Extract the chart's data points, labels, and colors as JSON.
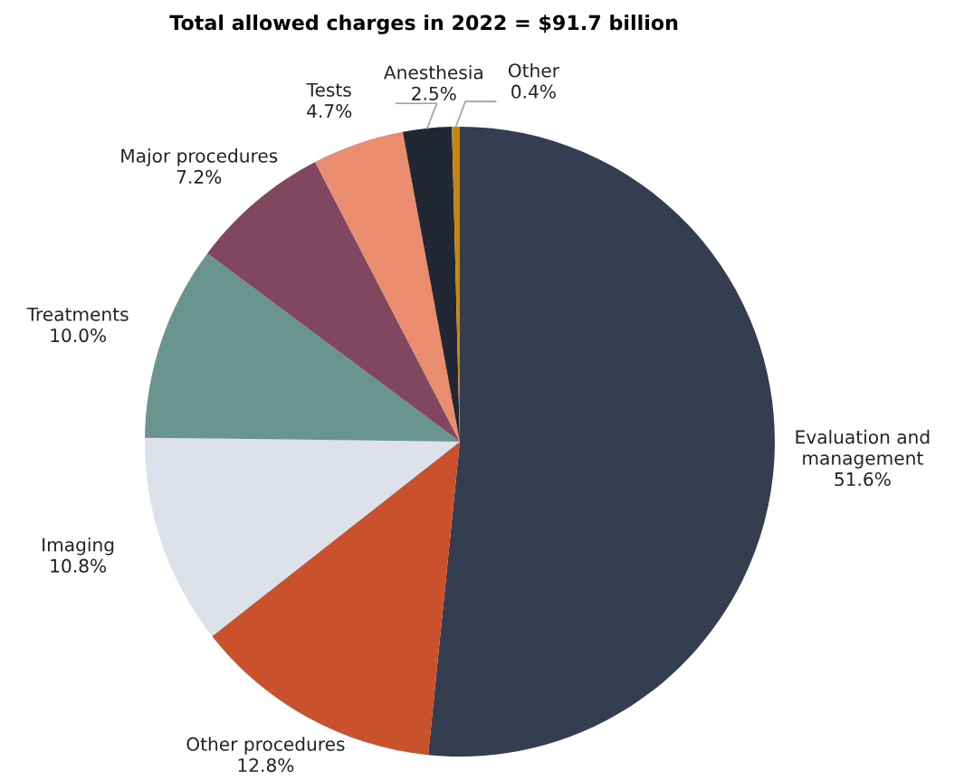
{
  "chart_data": {
    "type": "pie",
    "title": "Total allowed charges in 2022 = $91.7 billion",
    "categories": [
      "Evaluation and management",
      "Other procedures",
      "Imaging",
      "Treatments",
      "Major procedures",
      "Tests",
      "Anesthesia",
      "Other"
    ],
    "values": [
      51.6,
      12.8,
      10.8,
      10.0,
      7.2,
      4.7,
      2.5,
      0.4
    ],
    "value_labels": [
      "51.6%",
      "12.8%",
      "10.8%",
      "10.0%",
      "7.2%",
      "4.7%",
      "2.5%",
      "0.4%"
    ],
    "colors": [
      "#343e50",
      "#c9522c",
      "#dde1ea",
      "#6a948e",
      "#80475f",
      "#ea8c6e",
      "#222833",
      "#c8860d"
    ],
    "legend": false
  }
}
